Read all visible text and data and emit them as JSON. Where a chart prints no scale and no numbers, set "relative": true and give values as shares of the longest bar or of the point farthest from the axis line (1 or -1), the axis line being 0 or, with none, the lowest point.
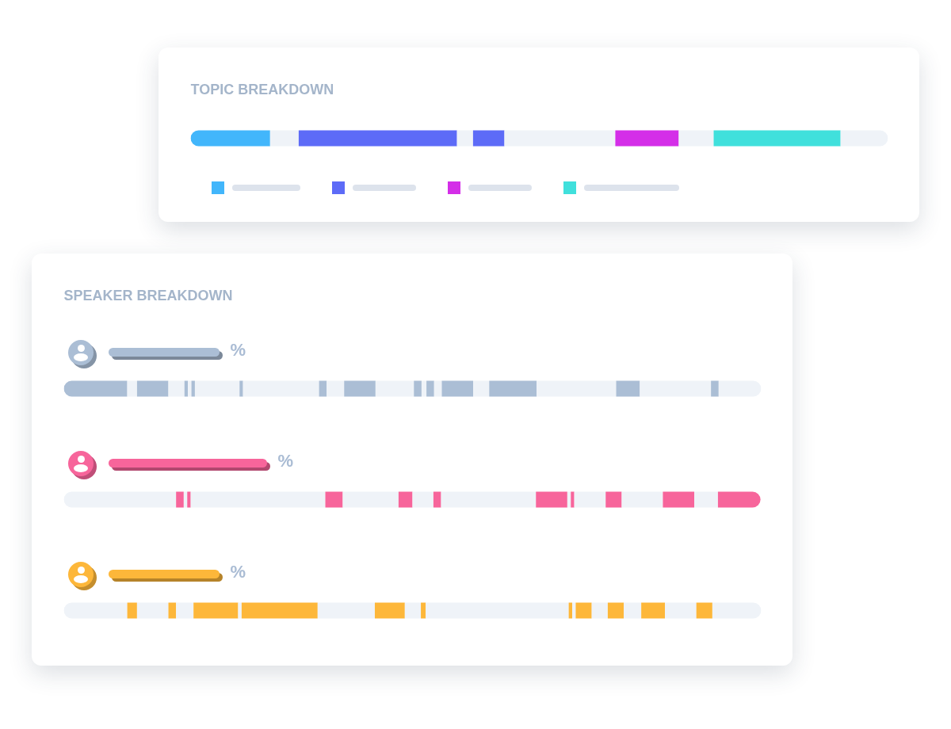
{
  "chart_data": [
    {
      "type": "bar",
      "orientation": "horizontal",
      "stacked": true,
      "relative": true,
      "title": "TOPIC BREAKDOWN",
      "categories": [
        null
      ],
      "series": [
        {
          "color": "#42b6fb",
          "values": [
            0.114
          ]
        },
        {
          "color": "#eff3f8",
          "values": [
            0.041
          ]
        },
        {
          "color": "#5d6bf7",
          "values": [
            0.227
          ]
        },
        {
          "color": "#eff3f8",
          "values": [
            0.023
          ]
        },
        {
          "color": "#5d6bf7",
          "values": [
            0.045
          ]
        },
        {
          "color": "#eff3f8",
          "values": [
            0.159
          ]
        },
        {
          "color": "#d42ee8",
          "values": [
            0.091
          ]
        },
        {
          "color": "#eff3f8",
          "values": [
            0.05
          ]
        },
        {
          "color": "#40e0dc",
          "values": [
            0.182
          ]
        },
        {
          "color": "#eff3f8",
          "values": [
            0.068
          ]
        }
      ]
    },
    {
      "type": "bar",
      "orientation": "horizontal",
      "stacked": true,
      "relative": true,
      "title": "SPEAKER BREAKDOWN",
      "categories": [
        null,
        null,
        null
      ],
      "annotations": [
        "%",
        "%",
        "%"
      ],
      "series": [
        {
          "colors": [
            "#abbed5",
            "#eff3f8",
            "#eff3f8"
          ],
          "values": [
            0.091,
            0.161,
            0.091
          ]
        },
        {
          "colors": [
            "#eff3f8",
            "#f7659b",
            "#fdb73a"
          ],
          "values": [
            0.014,
            0.011,
            0.014
          ]
        },
        {
          "colors": [
            "#abbed5",
            "#eff3f8",
            "#eff3f8"
          ],
          "values": [
            0.045,
            0.005,
            0.045
          ]
        },
        {
          "colors": [
            "#eff3f8",
            "#f7659b",
            "#fdb73a"
          ],
          "values": [
            0.023,
            0.005,
            0.011
          ]
        },
        {
          "colors": [
            "#abbed5",
            "#eff3f8",
            "#eff3f8"
          ],
          "values": [
            0.005,
            0.193,
            0.025
          ]
        },
        {
          "colors": [
            "#eff3f8",
            "#f7659b",
            "#fdb73a"
          ],
          "values": [
            0.005,
            0.025,
            0.064
          ]
        },
        {
          "colors": [
            "#abbed5",
            "#eff3f8",
            "#eff3f8"
          ],
          "values": [
            0.005,
            0.08,
            0.005
          ]
        },
        {
          "colors": [
            "#eff3f8",
            "#f7659b",
            "#fdb73a"
          ],
          "values": [
            0.064,
            0.02,
            0.109
          ]
        },
        {
          "colors": [
            "#abbed5",
            "#eff3f8",
            "#eff3f8"
          ],
          "values": [
            0.005,
            0.03,
            0.082
          ]
        },
        {
          "colors": [
            "#eff3f8",
            "#f7659b",
            "#fdb73a"
          ],
          "values": [
            0.109,
            0.011,
            0.043
          ]
        },
        {
          "colors": [
            "#abbed5",
            "#eff3f8",
            "#eff3f8"
          ],
          "values": [
            0.011,
            0.136,
            0.023
          ]
        },
        {
          "colors": [
            "#eff3f8",
            "#f7659b",
            "#fdb73a"
          ],
          "values": [
            0.025,
            0.045,
            0.007
          ]
        },
        {
          "colors": [
            "#abbed5",
            "#eff3f8",
            "#eff3f8"
          ],
          "values": [
            0.045,
            0.005,
            0.205
          ]
        },
        {
          "colors": [
            "#eff3f8",
            "#f7659b",
            "#fdb73a"
          ],
          "values": [
            0.055,
            0.005,
            0.005
          ]
        },
        {
          "colors": [
            "#abbed5",
            "#eff3f8",
            "#eff3f8"
          ],
          "values": [
            0.011,
            0.045,
            0.005
          ]
        },
        {
          "colors": [
            "#eff3f8",
            "#f7659b",
            "#fdb73a"
          ],
          "values": [
            0.007,
            0.023,
            0.023
          ]
        },
        {
          "colors": [
            "#abbed5",
            "#eff3f8",
            "#eff3f8"
          ],
          "values": [
            0.011,
            0.059,
            0.023
          ]
        },
        {
          "colors": [
            "#eff3f8",
            "#f7659b",
            "#fdb73a"
          ],
          "values": [
            0.011,
            0.045,
            0.023
          ]
        },
        {
          "colors": [
            "#abbed5",
            "#eff3f8",
            "#eff3f8"
          ],
          "values": [
            0.045,
            0.034,
            0.025
          ]
        },
        {
          "colors": [
            "#eff3f8",
            "#f7659b",
            "#fdb73a"
          ],
          "values": [
            0.023,
            0.061,
            0.034
          ]
        },
        {
          "colors": [
            "#abbed5",
            null,
            "#eff3f8"
          ],
          "values": [
            0.068,
            null,
            0.045
          ]
        },
        {
          "colors": [
            "#eff3f8",
            null,
            "#fdb73a"
          ],
          "values": [
            0.114,
            null,
            0.023
          ]
        },
        {
          "colors": [
            "#abbed5",
            null,
            "#eff3f8"
          ],
          "values": [
            0.034,
            null,
            0.07
          ]
        },
        {
          "colors": [
            "#eff3f8",
            null,
            null
          ],
          "values": [
            0.102,
            null,
            null
          ]
        },
        {
          "colors": [
            "#abbed5",
            null,
            null
          ],
          "values": [
            0.011,
            null,
            null
          ]
        },
        {
          "colors": [
            "#eff3f8",
            null,
            null
          ],
          "values": [
            0.061,
            null,
            null
          ]
        }
      ]
    }
  ]
}
